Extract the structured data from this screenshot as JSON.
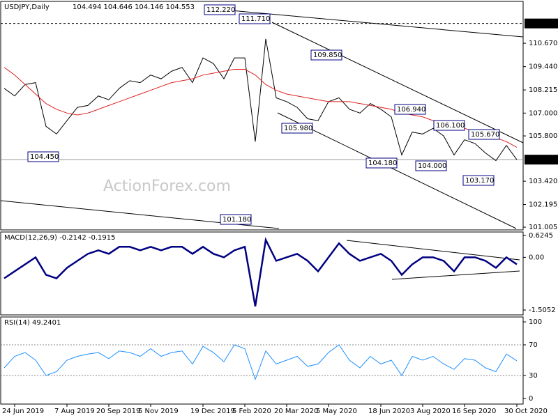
{
  "chart_data": [
    {
      "type": "line",
      "title": "USDJPY,Daily",
      "ohlc": "104.494 104.646 104.146 104.553",
      "watermark": "ActionForex.com",
      "categories": [
        null,
        "24 Jun 2019",
        null,
        null,
        null,
        null,
        "7 Aug 2019",
        null,
        null,
        null,
        "20 Sep 2019",
        null,
        null,
        null,
        "5 Nov 2019",
        null,
        null,
        null,
        null,
        "19 Dec 2019",
        null,
        null,
        null,
        "5 Feb 2020",
        null,
        null,
        null,
        "20 Mar 2020",
        null,
        null,
        null,
        "5 May 2020",
        null,
        null,
        null,
        null,
        "18 Jun 2020",
        null,
        null,
        null,
        "3 Aug 2020",
        null,
        null,
        null,
        "16 Sep 2020",
        null,
        null,
        null,
        null,
        "30 Oct 2020"
      ],
      "series": [
        {
          "name": "USDJPY",
          "color": "#000000",
          "values": [
            108.3,
            107.9,
            108.5,
            108.6,
            106.3,
            105.9,
            106.6,
            107.3,
            107.4,
            107.9,
            107.7,
            108.3,
            108.7,
            108.6,
            109.0,
            108.8,
            109.2,
            109.4,
            108.6,
            109.9,
            109.6,
            108.8,
            109.9,
            109.9,
            105.5,
            110.9,
            107.8,
            107.6,
            107.3,
            106.7,
            106.6,
            107.6,
            107.8,
            107.2,
            107.0,
            107.5,
            107.2,
            106.8,
            104.8,
            106.0,
            105.9,
            106.2,
            105.8,
            104.8,
            105.6,
            105.4,
            104.9,
            104.5,
            105.3,
            104.553
          ]
        },
        {
          "name": "MA",
          "color": "#e02020",
          "values": [
            109.4,
            109.0,
            108.5,
            108.0,
            107.5,
            107.2,
            107.0,
            106.9,
            107.0,
            107.2,
            107.4,
            107.6,
            107.8,
            108.0,
            108.2,
            108.4,
            108.6,
            108.7,
            108.8,
            109.0,
            109.1,
            109.2,
            109.3,
            109.3,
            109.0,
            108.5,
            108.2,
            108.0,
            107.9,
            107.8,
            107.7,
            107.6,
            107.6,
            107.6,
            107.5,
            107.4,
            107.3,
            107.2,
            107.0,
            106.9,
            106.8,
            106.6,
            106.5,
            106.3,
            106.2,
            106.0,
            105.9,
            105.7,
            105.5,
            105.2
          ]
        }
      ],
      "ylim": [
        100.86,
        112.87
      ],
      "yticks": [
        {
          "value": 110.67,
          "label": "110.670"
        },
        {
          "value": 109.44,
          "label": "109.440"
        },
        {
          "value": 108.215,
          "label": "108.215"
        },
        {
          "value": 107.0,
          "label": "107.000"
        },
        {
          "value": 105.8,
          "label": "105.800"
        },
        {
          "value": 103.42,
          "label": "103.420"
        },
        {
          "value": 102.195,
          "label": "102.195"
        },
        {
          "value": 101.005,
          "label": "101.005"
        }
      ],
      "level_tick": {
        "value": 111.71,
        "label": "111.710"
      },
      "last_price": {
        "value": 104.553,
        "label": "104.553"
      },
      "annotations": [
        "112.220",
        "111.710",
        "109.850",
        "105.980",
        "104.450",
        "101.180",
        "104.180",
        "106.940",
        "104.000",
        "106.100",
        "105.670",
        "103.170"
      ]
    },
    {
      "type": "line",
      "title": "MACD(12,26,9) -0.2142 -0.1915",
      "series": [
        {
          "name": "MACD",
          "color": "#000080",
          "values": [
            -0.6,
            -0.4,
            -0.2,
            0.0,
            -0.5,
            -0.6,
            -0.3,
            -0.1,
            0.1,
            0.2,
            0.1,
            0.3,
            0.3,
            0.2,
            0.3,
            0.2,
            0.3,
            0.3,
            0.1,
            0.3,
            0.1,
            0.0,
            0.2,
            0.3,
            -1.4,
            0.5,
            -0.1,
            0.0,
            0.1,
            -0.1,
            -0.4,
            0.0,
            0.4,
            0.1,
            -0.1,
            0.0,
            0.1,
            -0.1,
            -0.5,
            -0.2,
            0.0,
            0.0,
            -0.1,
            -0.4,
            0.0,
            0.0,
            -0.1,
            -0.3,
            0.0,
            -0.2
          ]
        }
      ],
      "ylim": [
        -1.645,
        0.724
      ],
      "yticks": [
        0.6245,
        {
          "value": 0,
          "label": "0.00"
        },
        -1.5052
      ]
    },
    {
      "type": "line",
      "title": "RSI(14) 49.2401",
      "series": [
        {
          "name": "RSI",
          "color": "#1e90ff",
          "values": [
            40,
            55,
            60,
            50,
            30,
            35,
            50,
            55,
            58,
            60,
            52,
            62,
            60,
            55,
            65,
            55,
            60,
            62,
            45,
            68,
            60,
            48,
            70,
            65,
            25,
            62,
            45,
            50,
            55,
            42,
            45,
            60,
            70,
            50,
            40,
            55,
            45,
            50,
            30,
            55,
            50,
            55,
            45,
            38,
            52,
            50,
            40,
            35,
            58,
            49.24
          ]
        }
      ],
      "ylim": [
        -7.3,
        106.4
      ],
      "yticks": [
        100,
        70,
        30,
        0
      ],
      "levels": [
        70,
        30
      ]
    }
  ]
}
